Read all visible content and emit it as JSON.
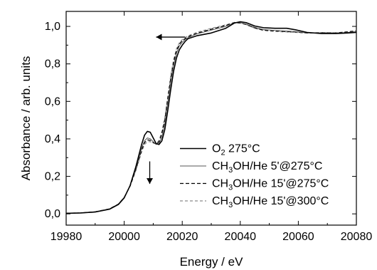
{
  "chart_data": {
    "type": "line",
    "xlabel": "Energy / eV",
    "ylabel": "Absorbance / arb. units",
    "xlim": [
      19980,
      20080
    ],
    "ylim": [
      -0.06,
      1.08
    ],
    "x_ticks": [
      19980,
      20000,
      20020,
      20040,
      20060,
      20080
    ],
    "x_tick_labels": [
      "19980",
      "20000",
      "20020",
      "20040",
      "20060",
      "20080"
    ],
    "y_ticks": [
      0.0,
      0.2,
      0.4,
      0.6,
      0.8,
      1.0
    ],
    "y_tick_labels": [
      "0,0",
      "0,2",
      "0,4",
      "0,6",
      "0,8",
      "1,0"
    ],
    "grid": false,
    "legend_position": "lower-right",
    "annotations": [
      {
        "type": "arrow",
        "direction": "left",
        "from": [
          20021,
          0.943
        ],
        "to": [
          20011,
          0.943
        ]
      },
      {
        "type": "arrow",
        "direction": "down",
        "from": [
          20008.8,
          0.28
        ],
        "to": [
          20008.8,
          0.16
        ]
      }
    ],
    "series": [
      {
        "name": "O2 275°C",
        "legend_label": {
          "main": "O",
          "sub": "2",
          "rest": " 275°C"
        },
        "color": "#000000",
        "dash": "solid",
        "width": 1.6,
        "points": [
          [
            19980,
            0.003
          ],
          [
            19985,
            0.005
          ],
          [
            19990,
            0.01
          ],
          [
            19995,
            0.025
          ],
          [
            19998,
            0.05
          ],
          [
            20000,
            0.085
          ],
          [
            20002,
            0.15
          ],
          [
            20004,
            0.25
          ],
          [
            20006,
            0.37
          ],
          [
            20007,
            0.42
          ],
          [
            20008,
            0.44
          ],
          [
            20009,
            0.435
          ],
          [
            20010,
            0.405
          ],
          [
            20011,
            0.375
          ],
          [
            20012,
            0.37
          ],
          [
            20013,
            0.39
          ],
          [
            20014,
            0.45
          ],
          [
            20015,
            0.55
          ],
          [
            20016,
            0.66
          ],
          [
            20017,
            0.76
          ],
          [
            20018,
            0.83
          ],
          [
            20019,
            0.875
          ],
          [
            20020,
            0.9
          ],
          [
            20021,
            0.92
          ],
          [
            20022,
            0.935
          ],
          [
            20025,
            0.95
          ],
          [
            20030,
            0.965
          ],
          [
            20035,
            0.99
          ],
          [
            20038,
            1.018
          ],
          [
            20040,
            1.025
          ],
          [
            20042,
            1.02
          ],
          [
            20045,
            1.002
          ],
          [
            20048,
            0.993
          ],
          [
            20052,
            0.99
          ],
          [
            20056,
            0.99
          ],
          [
            20059,
            0.982
          ],
          [
            20063,
            0.968
          ],
          [
            20068,
            0.962
          ],
          [
            20073,
            0.962
          ],
          [
            20077,
            0.965
          ],
          [
            20080,
            0.968
          ]
        ]
      },
      {
        "name": "CH3OH/He 5'@275°C",
        "legend_label": {
          "main": "CH",
          "sub": "3",
          "rest": "OH/He 5'@275°C"
        },
        "color": "#555555",
        "dash": "solid",
        "width": 1.0,
        "points": [
          [
            19980,
            0.003
          ],
          [
            19985,
            0.005
          ],
          [
            19990,
            0.011
          ],
          [
            19995,
            0.027
          ],
          [
            19998,
            0.052
          ],
          [
            20000,
            0.088
          ],
          [
            20002,
            0.15
          ],
          [
            20004,
            0.24
          ],
          [
            20006,
            0.35
          ],
          [
            20007,
            0.39
          ],
          [
            20008,
            0.405
          ],
          [
            20009,
            0.4
          ],
          [
            20010,
            0.385
          ],
          [
            20011,
            0.37
          ],
          [
            20012,
            0.375
          ],
          [
            20013,
            0.41
          ],
          [
            20014,
            0.48
          ],
          [
            20015,
            0.59
          ],
          [
            20016,
            0.7
          ],
          [
            20017,
            0.79
          ],
          [
            20018,
            0.855
          ],
          [
            20019,
            0.895
          ],
          [
            20020,
            0.915
          ],
          [
            20021,
            0.93
          ],
          [
            20022,
            0.94
          ],
          [
            20025,
            0.96
          ],
          [
            20030,
            0.98
          ],
          [
            20035,
            1.0
          ],
          [
            20038,
            1.02
          ],
          [
            20040,
            1.02
          ],
          [
            20042,
            1.012
          ],
          [
            20045,
            0.995
          ],
          [
            20048,
            0.983
          ],
          [
            20052,
            0.978
          ],
          [
            20056,
            0.975
          ],
          [
            20059,
            0.972
          ],
          [
            20063,
            0.965
          ],
          [
            20068,
            0.965
          ],
          [
            20073,
            0.963
          ],
          [
            20077,
            0.968
          ],
          [
            20080,
            0.972
          ]
        ]
      },
      {
        "name": "CH3OH/He 15'@275°C",
        "legend_label": {
          "main": "CH",
          "sub": "3",
          "rest": "OH/He 15'@275°C"
        },
        "color": "#000000",
        "dash": "5,3",
        "width": 1.3,
        "points": [
          [
            19980,
            0.003
          ],
          [
            19985,
            0.005
          ],
          [
            19990,
            0.011
          ],
          [
            19995,
            0.027
          ],
          [
            19998,
            0.052
          ],
          [
            20000,
            0.088
          ],
          [
            20002,
            0.148
          ],
          [
            20004,
            0.235
          ],
          [
            20006,
            0.34
          ],
          [
            20007,
            0.38
          ],
          [
            20008,
            0.395
          ],
          [
            20009,
            0.392
          ],
          [
            20010,
            0.38
          ],
          [
            20011,
            0.372
          ],
          [
            20012,
            0.385
          ],
          [
            20013,
            0.43
          ],
          [
            20014,
            0.5
          ],
          [
            20015,
            0.61
          ],
          [
            20016,
            0.72
          ],
          [
            20017,
            0.81
          ],
          [
            20018,
            0.87
          ],
          [
            20019,
            0.905
          ],
          [
            20020,
            0.925
          ],
          [
            20021,
            0.935
          ],
          [
            20022,
            0.945
          ],
          [
            20025,
            0.963
          ],
          [
            20030,
            0.985
          ],
          [
            20035,
            1.005
          ],
          [
            20038,
            1.02
          ],
          [
            20040,
            1.018
          ],
          [
            20042,
            1.01
          ],
          [
            20045,
            0.992
          ],
          [
            20048,
            0.98
          ],
          [
            20052,
            0.976
          ],
          [
            20056,
            0.972
          ],
          [
            20059,
            0.97
          ],
          [
            20063,
            0.965
          ],
          [
            20068,
            0.966
          ],
          [
            20073,
            0.965
          ],
          [
            20077,
            0.97
          ],
          [
            20080,
            0.975
          ]
        ]
      },
      {
        "name": "CH3OH/He 15'@300°C",
        "legend_label": {
          "main": "CH",
          "sub": "3",
          "rest": "OH/He 15'@300°C"
        },
        "color": "#8a8a8a",
        "dash": "4,3",
        "width": 1.2,
        "points": [
          [
            19980,
            0.003
          ],
          [
            19985,
            0.005
          ],
          [
            19990,
            0.011
          ],
          [
            19995,
            0.027
          ],
          [
            19998,
            0.052
          ],
          [
            20000,
            0.088
          ],
          [
            20002,
            0.146
          ],
          [
            20004,
            0.23
          ],
          [
            20006,
            0.33
          ],
          [
            20007,
            0.37
          ],
          [
            20008,
            0.385
          ],
          [
            20009,
            0.385
          ],
          [
            20010,
            0.378
          ],
          [
            20011,
            0.375
          ],
          [
            20012,
            0.392
          ],
          [
            20013,
            0.44
          ],
          [
            20014,
            0.515
          ],
          [
            20015,
            0.625
          ],
          [
            20016,
            0.735
          ],
          [
            20017,
            0.82
          ],
          [
            20018,
            0.88
          ],
          [
            20019,
            0.912
          ],
          [
            20020,
            0.93
          ],
          [
            20021,
            0.94
          ],
          [
            20022,
            0.95
          ],
          [
            20025,
            0.968
          ],
          [
            20030,
            0.99
          ],
          [
            20035,
            1.008
          ],
          [
            20038,
            1.022
          ],
          [
            20040,
            1.02
          ],
          [
            20042,
            1.01
          ],
          [
            20045,
            0.99
          ],
          [
            20048,
            0.978
          ],
          [
            20052,
            0.973
          ],
          [
            20056,
            0.97
          ],
          [
            20059,
            0.968
          ],
          [
            20063,
            0.965
          ],
          [
            20068,
            0.967
          ],
          [
            20073,
            0.966
          ],
          [
            20077,
            0.972
          ],
          [
            20080,
            0.978
          ]
        ]
      }
    ]
  }
}
